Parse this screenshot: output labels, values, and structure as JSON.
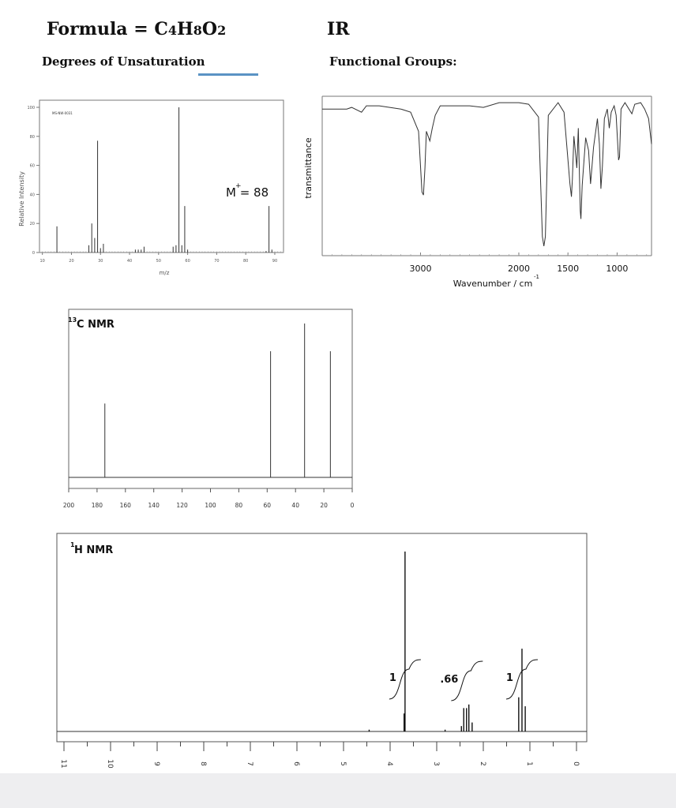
{
  "header": {
    "formula_label": "Formula = ",
    "formula_c": "C",
    "formula_c_sub": "4",
    "formula_h": "H",
    "formula_h_sub": "8",
    "formula_o": "O",
    "formula_o_sub": "2",
    "ir_title": "IR",
    "dou_label": "Degrees of Unsaturation",
    "fg_label": "Functional Groups:"
  },
  "chart_data": [
    {
      "type": "bar",
      "name_tag": "MS",
      "code_label": "MS-NW-0031",
      "xlabel": "m/z",
      "ylabel": "Relative Intensity",
      "xlim": [
        9,
        93
      ],
      "ylim": [
        0,
        100
      ],
      "xticks": [
        10,
        20,
        30,
        40,
        50,
        60,
        70,
        80,
        90
      ],
      "yticks": [
        0,
        20,
        40,
        60,
        80,
        100
      ],
      "annotation": "M = 88",
      "annotation_sup": "+",
      "peaks": [
        {
          "x": 15,
          "y": 18
        },
        {
          "x": 26,
          "y": 5
        },
        {
          "x": 27,
          "y": 20
        },
        {
          "x": 28,
          "y": 10
        },
        {
          "x": 29,
          "y": 77
        },
        {
          "x": 30,
          "y": 3
        },
        {
          "x": 31,
          "y": 6
        },
        {
          "x": 42,
          "y": 2
        },
        {
          "x": 43,
          "y": 2
        },
        {
          "x": 44,
          "y": 2
        },
        {
          "x": 45,
          "y": 4
        },
        {
          "x": 55,
          "y": 4
        },
        {
          "x": 56,
          "y": 5
        },
        {
          "x": 57,
          "y": 100
        },
        {
          "x": 58,
          "y": 5
        },
        {
          "x": 59,
          "y": 32
        },
        {
          "x": 60,
          "y": 2
        },
        {
          "x": 87,
          "y": 1
        },
        {
          "x": 88,
          "y": 32
        },
        {
          "x": 89,
          "y": 2
        }
      ]
    },
    {
      "type": "line",
      "name_tag": "IR",
      "xlabel": "Wavenumber / cm",
      "xlabel_sup": "-1",
      "ylabel": "transmittance",
      "xlim": [
        4000,
        650
      ],
      "ylim": [
        0,
        100
      ],
      "xticks": [
        3000,
        2000,
        1500,
        1000
      ],
      "points": [
        [
          4000,
          92
        ],
        [
          3750,
          92
        ],
        [
          3700,
          93
        ],
        [
          3600,
          90
        ],
        [
          3550,
          94
        ],
        [
          3420,
          94
        ],
        [
          3200,
          92
        ],
        [
          3100,
          90
        ],
        [
          3020,
          78
        ],
        [
          2985,
          40
        ],
        [
          2970,
          38
        ],
        [
          2955,
          55
        ],
        [
          2940,
          78
        ],
        [
          2905,
          72
        ],
        [
          2880,
          80
        ],
        [
          2850,
          88
        ],
        [
          2800,
          94
        ],
        [
          2500,
          94
        ],
        [
          2360,
          93
        ],
        [
          2200,
          96
        ],
        [
          2000,
          96
        ],
        [
          1900,
          95
        ],
        [
          1800,
          87
        ],
        [
          1760,
          12
        ],
        [
          1745,
          6
        ],
        [
          1730,
          12
        ],
        [
          1700,
          88
        ],
        [
          1600,
          96
        ],
        [
          1540,
          90
        ],
        [
          1480,
          45
        ],
        [
          1465,
          37
        ],
        [
          1455,
          48
        ],
        [
          1440,
          75
        ],
        [
          1420,
          62
        ],
        [
          1410,
          55
        ],
        [
          1395,
          80
        ],
        [
          1375,
          28
        ],
        [
          1368,
          23
        ],
        [
          1355,
          44
        ],
        [
          1320,
          74
        ],
        [
          1290,
          66
        ],
        [
          1270,
          45
        ],
        [
          1240,
          68
        ],
        [
          1200,
          86
        ],
        [
          1180,
          70
        ],
        [
          1165,
          42
        ],
        [
          1150,
          56
        ],
        [
          1130,
          86
        ],
        [
          1100,
          92
        ],
        [
          1080,
          80
        ],
        [
          1060,
          90
        ],
        [
          1030,
          94
        ],
        [
          1010,
          88
        ],
        [
          985,
          60
        ],
        [
          975,
          62
        ],
        [
          960,
          92
        ],
        [
          920,
          96
        ],
        [
          880,
          92
        ],
        [
          850,
          89
        ],
        [
          820,
          95
        ],
        [
          760,
          96
        ],
        [
          720,
          92
        ],
        [
          680,
          86
        ],
        [
          650,
          70
        ]
      ]
    },
    {
      "type": "line",
      "name_tag": "13C",
      "title": "C NMR",
      "title_sup": "13",
      "xlim": [
        200,
        0
      ],
      "xticks": [
        200,
        180,
        160,
        140,
        120,
        100,
        80,
        60,
        40,
        20,
        0
      ],
      "peaks": [
        {
          "ppm": 174.5,
          "height": 0.48
        },
        {
          "ppm": 57.6,
          "height": 0.82
        },
        {
          "ppm": 33.6,
          "height": 1.0
        },
        {
          "ppm": 15.4,
          "height": 0.82
        }
      ]
    },
    {
      "type": "line",
      "name_tag": "1H",
      "title": "H NMR",
      "title_sup": "1",
      "xlim": [
        11,
        0
      ],
      "xticks": [
        11,
        10,
        9,
        8,
        7,
        6,
        5,
        4,
        3,
        2,
        1,
        0
      ],
      "tick_labels": [
        "11",
        "10",
        "9",
        "8",
        "7",
        "6",
        "5",
        "4",
        "3",
        "2",
        "1",
        "0"
      ],
      "integrals": [
        "1",
        ".66",
        "1"
      ],
      "peaks": [
        {
          "ppm": 3.68,
          "height": 1.0
        },
        {
          "ppm": 3.7,
          "height": 0.1
        },
        {
          "ppm": 2.42,
          "height": 0.13
        },
        {
          "ppm": 2.36,
          "height": 0.13
        },
        {
          "ppm": 2.31,
          "height": 0.15
        },
        {
          "ppm": 2.24,
          "height": 0.05
        },
        {
          "ppm": 2.47,
          "height": 0.03
        },
        {
          "ppm": 1.24,
          "height": 0.19
        },
        {
          "ppm": 1.17,
          "height": 0.46
        },
        {
          "ppm": 1.1,
          "height": 0.14
        },
        {
          "ppm": 4.45,
          "height": 0.01
        },
        {
          "ppm": 2.82,
          "height": 0.01
        }
      ]
    }
  ]
}
